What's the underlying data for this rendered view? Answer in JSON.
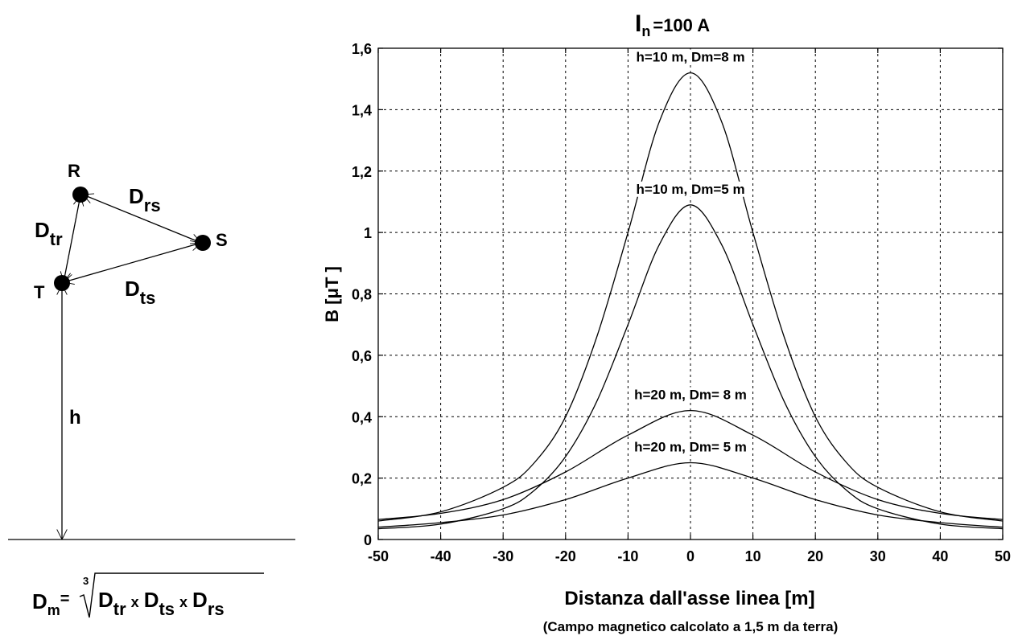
{
  "diagram": {
    "nodes": [
      {
        "id": "R",
        "label": "R"
      },
      {
        "id": "S",
        "label": "S"
      },
      {
        "id": "T",
        "label": "T"
      }
    ],
    "distances": [
      {
        "id": "tr",
        "base": "D",
        "sub": "tr"
      },
      {
        "id": "rs",
        "base": "D",
        "sub": "rs"
      },
      {
        "id": "ts",
        "base": "D",
        "sub": "ts"
      }
    ],
    "height_label": "h",
    "formula": {
      "lhs_base": "D",
      "lhs_sub": "m",
      "equals": "=",
      "root_index": "3",
      "terms": [
        {
          "base": "D",
          "sub": "tr"
        },
        {
          "base": "D",
          "sub": "ts"
        },
        {
          "base": "D",
          "sub": "rs"
        }
      ],
      "times": "x"
    }
  },
  "chart_data": {
    "type": "line",
    "title": {
      "symbol": "I",
      "sub": "n",
      "rest": "=100 A"
    },
    "xlabel": "Distanza dall'asse linea [m]",
    "ylabel": "B [μT ]",
    "note": "(Campo magnetico calcolato a 1,5 m da terra)",
    "xlim": [
      -50,
      50
    ],
    "ylim": [
      0,
      1.6
    ],
    "xticks": [
      "-50",
      "-40",
      "-30",
      "-20",
      "-10",
      "0",
      "10",
      "20",
      "30",
      "40",
      "50"
    ],
    "yticks": [
      "0",
      "0,2",
      "0,4",
      "0,6",
      "0,8",
      "1",
      "1,2",
      "1,4",
      "1,6"
    ],
    "grid": true,
    "series": [
      {
        "name": "h=10 m, Dm=8 m",
        "x": [
          -50,
          -40,
          -30,
          -25,
          -20,
          -15,
          -10,
          -5,
          0,
          5,
          10,
          15,
          20,
          25,
          30,
          40,
          50
        ],
        "y": [
          0.06,
          0.09,
          0.17,
          0.25,
          0.4,
          0.66,
          1.0,
          1.36,
          1.52,
          1.36,
          1.0,
          0.66,
          0.4,
          0.25,
          0.17,
          0.09,
          0.06
        ]
      },
      {
        "name": "h=10 m, Dm=5 m",
        "x": [
          -50,
          -40,
          -30,
          -25,
          -20,
          -15,
          -10,
          -5,
          0,
          5,
          10,
          15,
          20,
          25,
          30,
          40,
          50
        ],
        "y": [
          0.035,
          0.05,
          0.1,
          0.16,
          0.27,
          0.45,
          0.7,
          0.96,
          1.09,
          0.96,
          0.7,
          0.45,
          0.27,
          0.16,
          0.1,
          0.05,
          0.035
        ]
      },
      {
        "name": "h=20 m, Dm= 8 m",
        "x": [
          -50,
          -40,
          -30,
          -20,
          -10,
          0,
          10,
          20,
          30,
          40,
          50
        ],
        "y": [
          0.065,
          0.085,
          0.13,
          0.22,
          0.34,
          0.42,
          0.34,
          0.22,
          0.13,
          0.085,
          0.065
        ]
      },
      {
        "name": "h=20 m, Dm= 5 m",
        "x": [
          -50,
          -40,
          -30,
          -20,
          -10,
          0,
          10,
          20,
          30,
          40,
          50
        ],
        "y": [
          0.04,
          0.055,
          0.08,
          0.13,
          0.2,
          0.25,
          0.2,
          0.13,
          0.08,
          0.055,
          0.04
        ]
      }
    ]
  }
}
